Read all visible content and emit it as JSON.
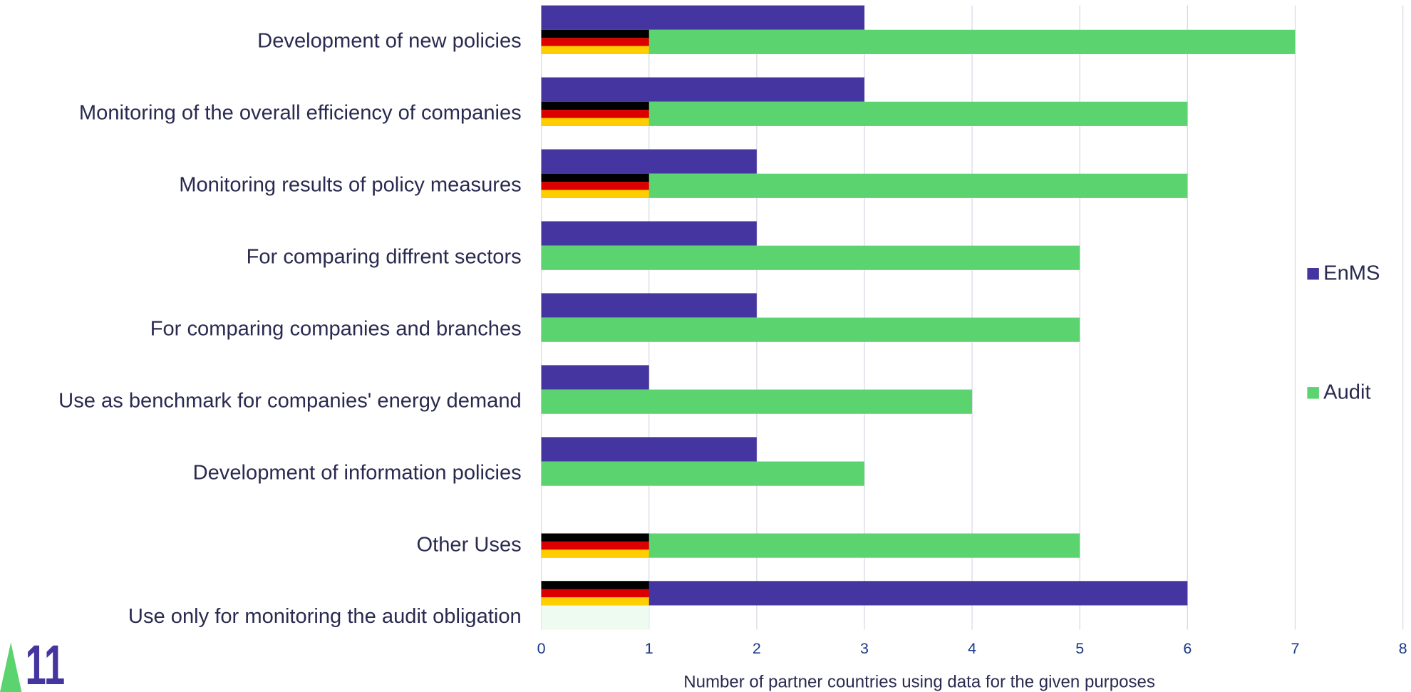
{
  "chart_data": {
    "type": "hbar",
    "categories": [
      "Development of new policies",
      "Monitoring of the overall efficiency of companies",
      "Monitoring results of policy measures",
      "For comparing diffrent sectors",
      "For comparing companies and branches",
      "Use as benchmark for companies' energy demand",
      "Development of information policies",
      "Other Uses",
      "Use only for monitoring the audit obligation"
    ],
    "series": [
      {
        "name": "EnMS",
        "color": "#4535a0",
        "values": [
          3,
          3,
          2,
          2,
          2,
          1,
          2,
          null,
          6
        ]
      },
      {
        "name": "Audit",
        "color": "#5bd36f",
        "values": [
          7,
          6,
          6,
          5,
          5,
          4,
          3,
          5,
          null
        ]
      }
    ],
    "xlim": [
      0,
      8
    ],
    "xticks": [
      0,
      1,
      2,
      3,
      4,
      5,
      6,
      7,
      8
    ],
    "grid": true,
    "xlabel": "Number of partner countries using data for the given purposes",
    "legend": "right"
  },
  "logo": "11"
}
